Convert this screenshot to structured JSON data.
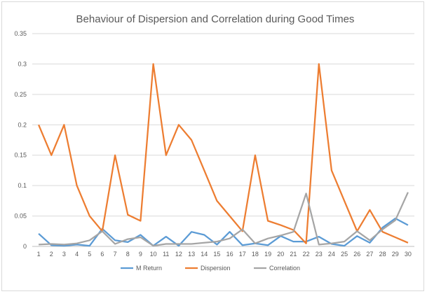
{
  "chart_data": {
    "type": "line",
    "title": "Behaviour of Dispersion and Correlation during Good Times",
    "xlabel": "",
    "ylabel": "",
    "categories": [
      "1",
      "2",
      "3",
      "4",
      "5",
      "6",
      "7",
      "8",
      "9",
      "10",
      "11",
      "12",
      "13",
      "14",
      "15",
      "16",
      "17",
      "18",
      "19",
      "20",
      "21",
      "22",
      "23",
      "24",
      "25",
      "26",
      "27",
      "28",
      "29",
      "30"
    ],
    "ylim": [
      0,
      0.35
    ],
    "yticks": [
      "0",
      "0.05",
      "0.1",
      "0.15",
      "0.2",
      "0.25",
      "0.3",
      "0.35"
    ],
    "grid": true,
    "legend_position": "bottom",
    "series": [
      {
        "name": "M Return",
        "color": "#5b9bd5",
        "values": [
          0.021,
          0.002,
          0.001,
          0.003,
          0.001,
          0.029,
          0.01,
          0.007,
          0.019,
          0.001,
          0.016,
          0.001,
          0.024,
          0.019,
          0.003,
          0.024,
          0.002,
          0.005,
          0.002,
          0.017,
          0.008,
          0.008,
          0.016,
          0.004,
          0.001,
          0.017,
          0.006,
          0.031,
          0.046,
          0.035
        ]
      },
      {
        "name": "Dispersion",
        "color": "#ed7d31",
        "values": [
          0.2,
          0.15,
          0.2,
          0.1,
          0.05,
          0.025,
          0.15,
          0.052,
          0.042,
          0.3,
          0.15,
          0.2,
          0.175,
          0.125,
          0.075,
          0.05,
          0.025,
          0.15,
          0.042,
          0.035,
          0.027,
          0.005,
          0.3,
          0.125,
          0.075,
          0.025,
          0.06,
          0.024,
          0.015,
          0.006
        ]
      },
      {
        "name": "Correlation",
        "color": "#a5a5a5",
        "values": [
          0.003,
          0.004,
          0.003,
          0.005,
          0.01,
          0.025,
          0.004,
          0.012,
          0.015,
          0.001,
          0.004,
          0.004,
          0.004,
          0.006,
          0.008,
          0.013,
          0.028,
          0.005,
          0.013,
          0.018,
          0.024,
          0.087,
          0.003,
          0.005,
          0.008,
          0.025,
          0.01,
          0.028,
          0.043,
          0.089
        ]
      }
    ]
  }
}
